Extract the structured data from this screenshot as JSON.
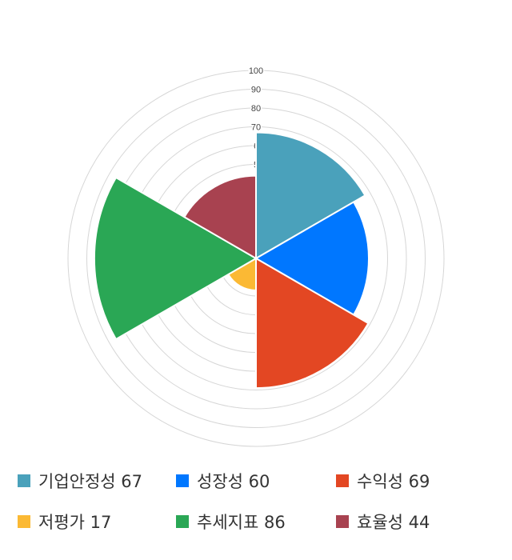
{
  "chart_data": {
    "type": "polarArea",
    "categories": [
      "기업안정성",
      "성장성",
      "수익성",
      "저평가",
      "추세지표",
      "효율성"
    ],
    "values": [
      67,
      60,
      69,
      17,
      86,
      44
    ],
    "colors": [
      "#4aa1bb",
      "#0077ff",
      "#e34723",
      "#fbb934",
      "#2aa755",
      "#a84250"
    ],
    "rlim": [
      0,
      100
    ],
    "ring_step": 10,
    "tick_labels": [
      "5",
      "6",
      "70",
      "80",
      "90",
      "100"
    ],
    "grid": true,
    "legend_position": "bottom"
  },
  "legend": [
    {
      "label": "기업안정성 67"
    },
    {
      "label": "성장성 60"
    },
    {
      "label": "수익성 69"
    },
    {
      "label": "저평가 17"
    },
    {
      "label": "추세지표 86"
    },
    {
      "label": "효율성 44"
    }
  ]
}
